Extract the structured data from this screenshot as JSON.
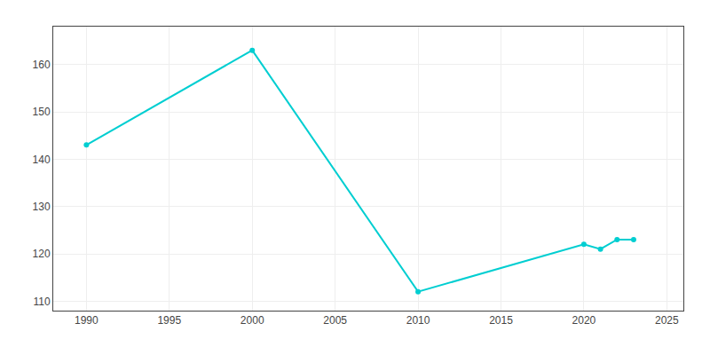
{
  "chart_data": {
    "type": "line",
    "x": [
      1990,
      2000,
      2010,
      2020,
      2021,
      2022,
      2023
    ],
    "values": [
      143,
      163,
      112,
      122,
      121,
      123,
      123
    ],
    "color": "#00CED1",
    "marker": "circle",
    "xlim": [
      1988,
      2026
    ],
    "xticks": [
      1990,
      1995,
      2000,
      2005,
      2010,
      2015,
      2020,
      2025
    ],
    "ylim": [
      108,
      168
    ],
    "yticks": [
      110,
      120,
      130,
      140,
      150,
      160
    ],
    "grid": true
  }
}
